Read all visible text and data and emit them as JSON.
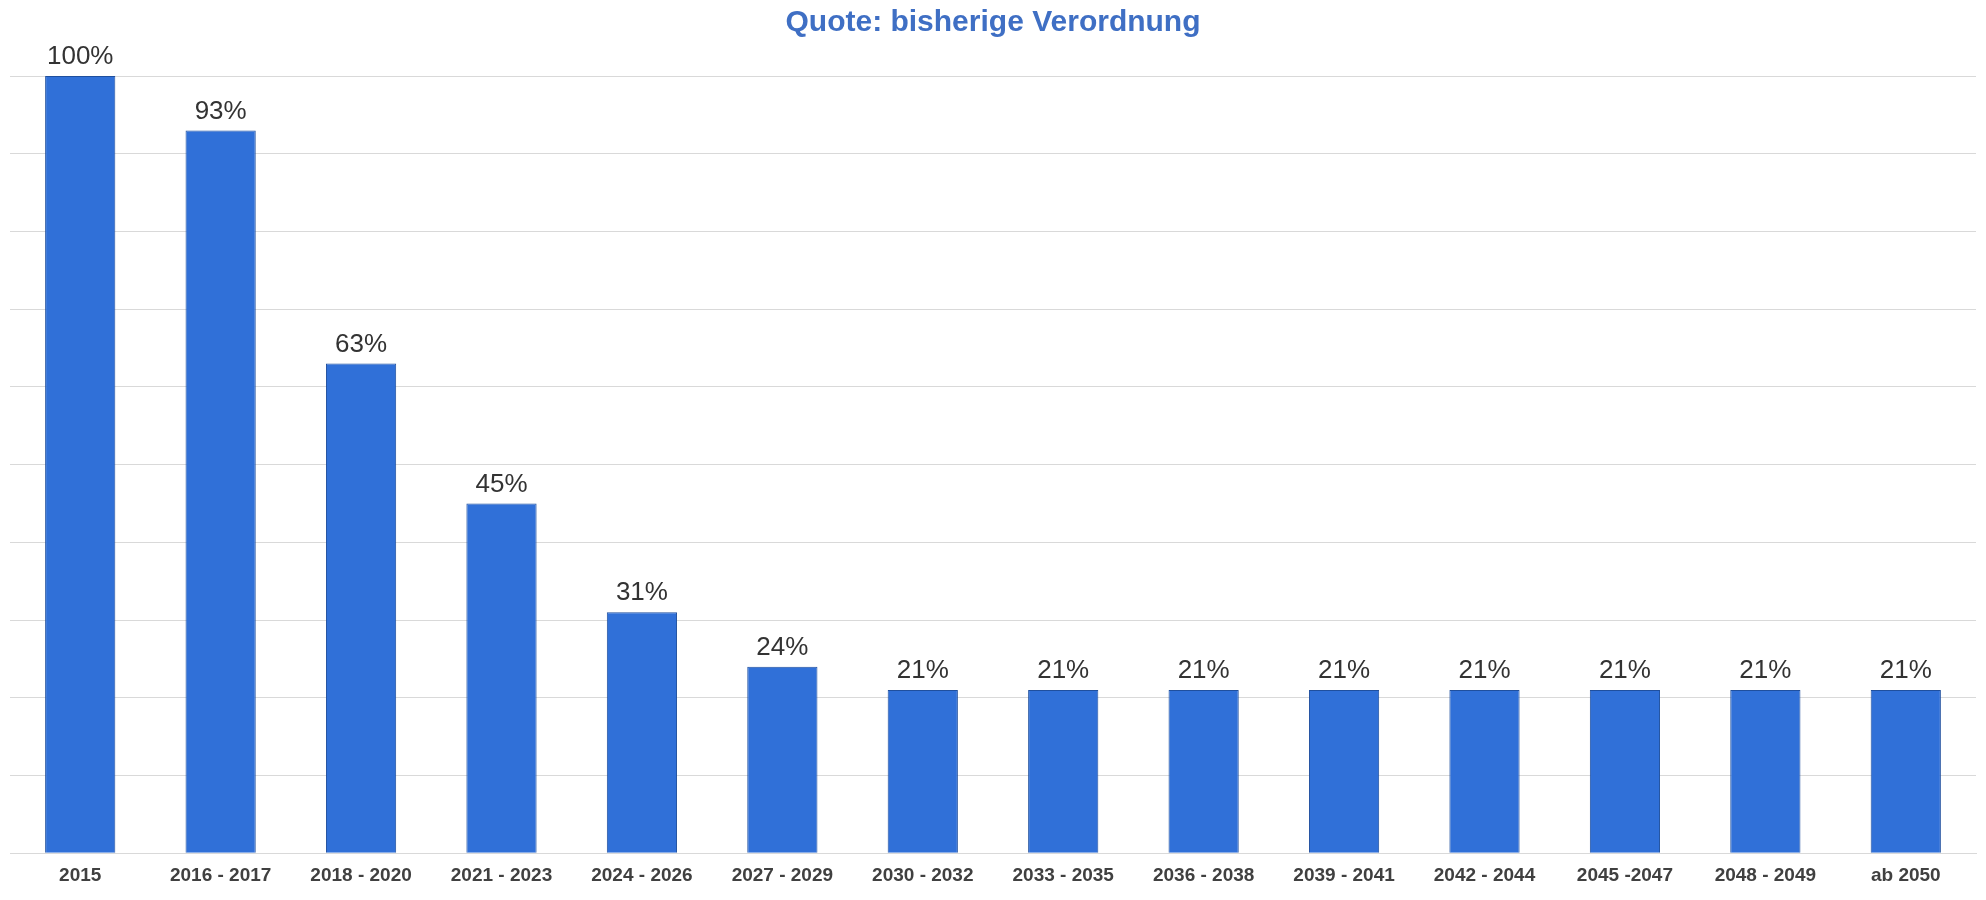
{
  "chart_data": {
    "type": "bar",
    "title": "Quote: bisherige Verordnung",
    "categories": [
      "2015",
      "2016 - 2017",
      "2018 - 2020",
      "2021 - 2023",
      "2024 - 2026",
      "2027 - 2029",
      "2030 - 2032",
      "2033 - 2035",
      "2036 - 2038",
      "2039 - 2041",
      "2042 - 2044",
      "2045 -2047",
      "2048 - 2049",
      "ab 2050"
    ],
    "values": [
      100,
      93,
      63,
      45,
      31,
      24,
      21,
      21,
      21,
      21,
      21,
      21,
      21,
      21
    ],
    "value_labels": [
      "100%",
      "93%",
      "63%",
      "45%",
      "31%",
      "24%",
      "21%",
      "21%",
      "21%",
      "21%",
      "21%",
      "21%",
      "21%",
      "21%"
    ],
    "color": "#3070d8",
    "ylim": [
      0,
      100
    ],
    "yticks": [
      {
        "value": 0,
        "label": null
      },
      {
        "value": 10,
        "label": null
      },
      {
        "value": 20,
        "label": null
      },
      {
        "value": 30,
        "label": null
      },
      {
        "value": 40,
        "label": null
      },
      {
        "value": 50,
        "label": null
      },
      {
        "value": 60,
        "label": null
      },
      {
        "value": 70,
        "label": null
      },
      {
        "value": 80,
        "label": null
      },
      {
        "value": 90,
        "label": null
      },
      {
        "value": 100,
        "label": null
      }
    ],
    "tick_labels": "x",
    "grid": "y",
    "legend": false
  }
}
